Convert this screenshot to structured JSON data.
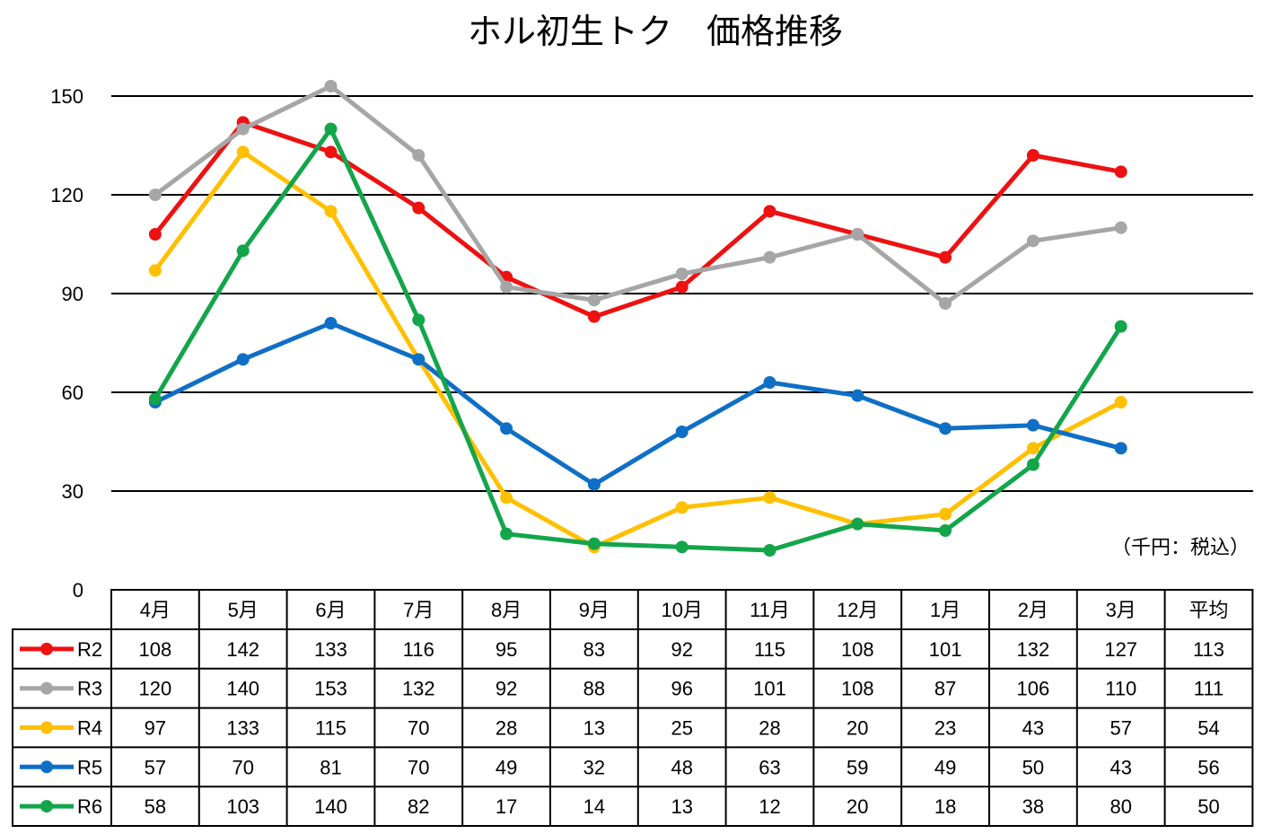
{
  "chart_data": {
    "type": "line",
    "title": "ホル初生トク　価格推移",
    "unit_note": "（千円：税込）",
    "categories": [
      "4月",
      "5月",
      "6月",
      "7月",
      "8月",
      "9月",
      "10月",
      "11月",
      "12月",
      "1月",
      "2月",
      "3月"
    ],
    "average_header": "平均",
    "ylim": [
      0,
      150
    ],
    "yticks": [
      0,
      30,
      60,
      90,
      120,
      150
    ],
    "grid": true,
    "series": [
      {
        "name": "R2",
        "color": "#EE1111",
        "values": [
          108,
          142,
          133,
          116,
          95,
          83,
          92,
          115,
          108,
          101,
          132,
          127
        ],
        "average": 113
      },
      {
        "name": "R3",
        "color": "#A6A6A6",
        "values": [
          120,
          140,
          153,
          132,
          92,
          88,
          96,
          101,
          108,
          87,
          106,
          110
        ],
        "average": 111
      },
      {
        "name": "R4",
        "color": "#FFC000",
        "values": [
          97,
          133,
          115,
          70,
          28,
          13,
          25,
          28,
          20,
          23,
          43,
          57
        ],
        "average": 54
      },
      {
        "name": "R5",
        "color": "#0F6FC6",
        "values": [
          57,
          70,
          81,
          70,
          49,
          32,
          48,
          63,
          59,
          49,
          50,
          43
        ],
        "average": 56
      },
      {
        "name": "R6",
        "color": "#13A54A",
        "values": [
          58,
          103,
          140,
          82,
          17,
          14,
          13,
          12,
          20,
          18,
          38,
          80
        ],
        "average": 50
      }
    ]
  }
}
